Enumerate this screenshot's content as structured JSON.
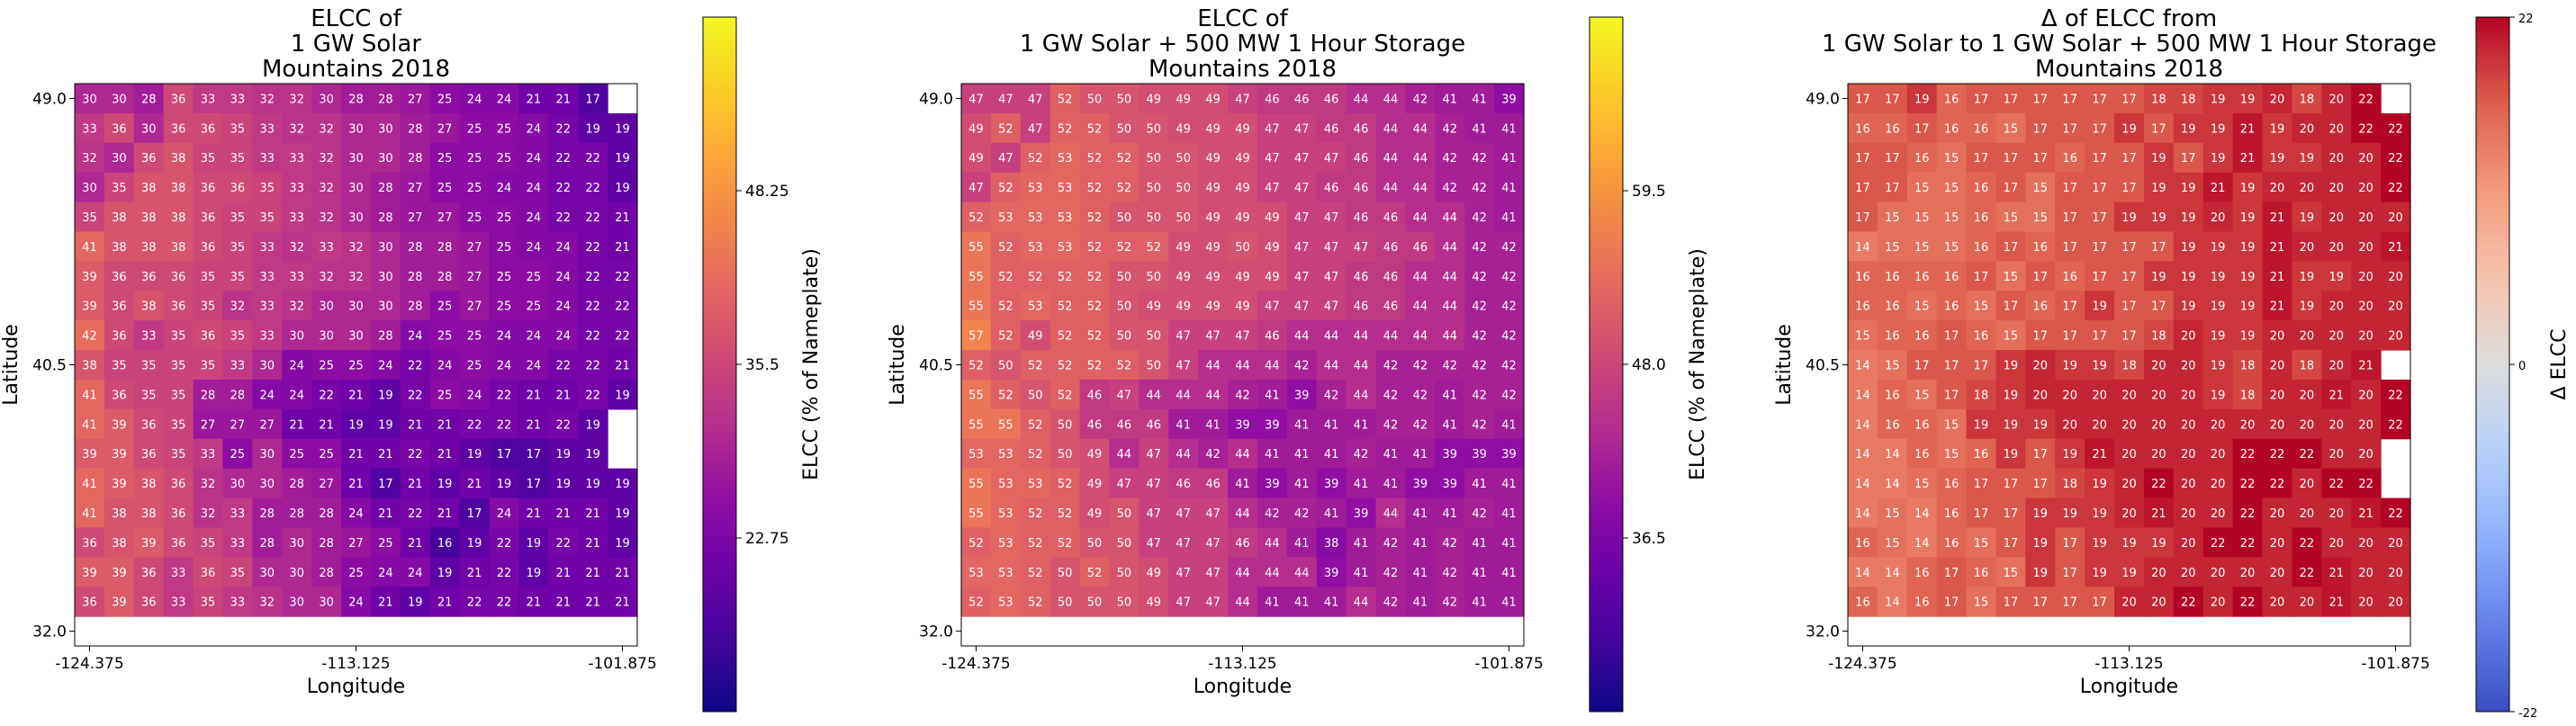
{
  "chart_data": [
    {
      "type": "heatmap",
      "title": "ELCC of\n1 GW Solar\nMountains 2018",
      "xlabel": "Longitude",
      "ylabel": "Latitude",
      "xticks": [
        "-124.375",
        "-113.125",
        "-101.875"
      ],
      "yticks": [
        "49.0",
        "40.5",
        "32.0"
      ],
      "colorbar": {
        "label": "ELCC (% of Nameplate)",
        "ticks": [
          "22.75",
          "35.5",
          "48.25"
        ],
        "tick_values": [
          22.75,
          35.5,
          48.25
        ],
        "range": [
          10,
          61
        ],
        "colormap": "plasma"
      },
      "values": [
        [
          30,
          30,
          28,
          36,
          33,
          33,
          32,
          32,
          30,
          28,
          28,
          27,
          25,
          24,
          24,
          21,
          21,
          17
        ],
        [
          33,
          36,
          30,
          36,
          36,
          35,
          33,
          32,
          32,
          30,
          30,
          28,
          27,
          25,
          25,
          24,
          22,
          19,
          19
        ],
        [
          32,
          30,
          36,
          38,
          35,
          35,
          33,
          33,
          32,
          30,
          30,
          28,
          25,
          25,
          25,
          24,
          22,
          22,
          19
        ],
        [
          30,
          35,
          38,
          38,
          36,
          36,
          35,
          33,
          32,
          30,
          28,
          27,
          25,
          25,
          24,
          24,
          22,
          22,
          19
        ],
        [
          35,
          38,
          38,
          38,
          36,
          35,
          35,
          33,
          32,
          30,
          28,
          27,
          27,
          25,
          25,
          24,
          22,
          22,
          21
        ],
        [
          41,
          38,
          38,
          38,
          36,
          35,
          33,
          32,
          33,
          32,
          30,
          28,
          28,
          27,
          25,
          24,
          24,
          22,
          21
        ],
        [
          39,
          36,
          36,
          36,
          35,
          35,
          33,
          33,
          32,
          32,
          30,
          28,
          28,
          27,
          25,
          25,
          24,
          22,
          22
        ],
        [
          39,
          36,
          38,
          36,
          35,
          32,
          33,
          32,
          30,
          30,
          30,
          28,
          25,
          27,
          25,
          25,
          24,
          22,
          22
        ],
        [
          42,
          36,
          33,
          35,
          36,
          35,
          33,
          30,
          30,
          30,
          28,
          24,
          25,
          25,
          24,
          24,
          24,
          22,
          22
        ],
        [
          38,
          35,
          35,
          35,
          35,
          33,
          30,
          24,
          25,
          25,
          24,
          22,
          24,
          25,
          24,
          24,
          22,
          22,
          21
        ],
        [
          41,
          36,
          35,
          35,
          28,
          28,
          24,
          24,
          22,
          21,
          19,
          22,
          25,
          24,
          22,
          21,
          21,
          22,
          19
        ],
        [
          41,
          39,
          36,
          35,
          27,
          27,
          27,
          21,
          21,
          19,
          19,
          21,
          21,
          22,
          22,
          21,
          22,
          19
        ],
        [
          39,
          39,
          36,
          35,
          33,
          25,
          30,
          25,
          25,
          21,
          21,
          22,
          21,
          19,
          17,
          17,
          19,
          19
        ],
        [
          41,
          39,
          38,
          36,
          32,
          30,
          30,
          28,
          27,
          21,
          17,
          21,
          19,
          21,
          19,
          17,
          19,
          19,
          19
        ],
        [
          41,
          38,
          38,
          36,
          32,
          33,
          28,
          28,
          28,
          24,
          21,
          22,
          21,
          17,
          24,
          21,
          21,
          21,
          19
        ],
        [
          36,
          38,
          39,
          36,
          35,
          33,
          28,
          30,
          28,
          27,
          25,
          21,
          16,
          19,
          22,
          19,
          22,
          21,
          19
        ],
        [
          39,
          39,
          36,
          33,
          36,
          35,
          30,
          30,
          28,
          25,
          24,
          24,
          19,
          21,
          22,
          19,
          21,
          21,
          21
        ],
        [
          36,
          39,
          36,
          33,
          35,
          33,
          32,
          30,
          30,
          24,
          21,
          19,
          21,
          22,
          22,
          21,
          21,
          21,
          21
        ]
      ]
    },
    {
      "type": "heatmap",
      "title": "ELCC of\n1 GW Solar + 500 MW 1 Hour Storage\nMountains 2018",
      "xlabel": "Longitude",
      "ylabel": "Latitude",
      "xticks": [
        "-124.375",
        "-113.125",
        "-101.875"
      ],
      "yticks": [
        "49.0",
        "40.5",
        "32.0"
      ],
      "colorbar": {
        "label": "ELCC (% of Nameplate)",
        "ticks": [
          "36.5",
          "48.0",
          "59.5"
        ],
        "tick_values": [
          36.5,
          48.0,
          59.5
        ],
        "range": [
          25,
          71
        ],
        "colormap": "plasma"
      },
      "values": [
        [
          47,
          47,
          47,
          52,
          50,
          50,
          49,
          49,
          49,
          47,
          46,
          46,
          46,
          44,
          44,
          42,
          41,
          41,
          39
        ],
        [
          49,
          52,
          47,
          52,
          52,
          50,
          50,
          49,
          49,
          49,
          47,
          47,
          46,
          46,
          44,
          44,
          42,
          41,
          41
        ],
        [
          49,
          47,
          52,
          53,
          52,
          52,
          50,
          50,
          49,
          49,
          47,
          47,
          47,
          46,
          44,
          44,
          42,
          42,
          41
        ],
        [
          47,
          52,
          53,
          53,
          52,
          52,
          50,
          50,
          49,
          49,
          47,
          47,
          46,
          46,
          44,
          44,
          42,
          42,
          41
        ],
        [
          52,
          53,
          53,
          53,
          52,
          50,
          50,
          50,
          49,
          49,
          49,
          47,
          47,
          46,
          46,
          44,
          44,
          42,
          41
        ],
        [
          55,
          52,
          53,
          53,
          52,
          52,
          52,
          49,
          49,
          50,
          49,
          47,
          47,
          47,
          46,
          46,
          44,
          42,
          42
        ],
        [
          55,
          52,
          52,
          52,
          52,
          50,
          50,
          49,
          49,
          49,
          49,
          47,
          47,
          46,
          46,
          44,
          44,
          42,
          42
        ],
        [
          55,
          52,
          53,
          52,
          52,
          50,
          49,
          49,
          49,
          49,
          47,
          47,
          47,
          46,
          46,
          44,
          44,
          42,
          42
        ],
        [
          57,
          52,
          49,
          52,
          52,
          50,
          50,
          47,
          47,
          47,
          46,
          44,
          44,
          44,
          44,
          44,
          44,
          42,
          42
        ],
        [
          52,
          50,
          52,
          52,
          52,
          52,
          50,
          47,
          44,
          44,
          44,
          42,
          44,
          44,
          42,
          42,
          42,
          42,
          42
        ],
        [
          55,
          52,
          50,
          52,
          46,
          47,
          44,
          44,
          44,
          42,
          41,
          39,
          42,
          44,
          42,
          42,
          41,
          42,
          42,
          41
        ],
        [
          55,
          55,
          52,
          50,
          46,
          46,
          46,
          41,
          41,
          39,
          39,
          41,
          41,
          41,
          42,
          42,
          41,
          42,
          41
        ],
        [
          53,
          53,
          52,
          50,
          49,
          44,
          47,
          44,
          42,
          44,
          41,
          41,
          41,
          42,
          41,
          41,
          39,
          39,
          39
        ],
        [
          55,
          53,
          53,
          52,
          49,
          47,
          47,
          46,
          46,
          41,
          39,
          41,
          39,
          41,
          41,
          39,
          39,
          41,
          41
        ],
        [
          55,
          53,
          52,
          52,
          49,
          50,
          47,
          47,
          47,
          44,
          42,
          42,
          41,
          39,
          44,
          41,
          41,
          42,
          41
        ],
        [
          52,
          53,
          52,
          52,
          50,
          50,
          47,
          47,
          47,
          46,
          44,
          41,
          38,
          41,
          42,
          41,
          42,
          41,
          41
        ],
        [
          53,
          53,
          52,
          50,
          52,
          50,
          49,
          47,
          47,
          44,
          44,
          44,
          39,
          41,
          42,
          41,
          42,
          41,
          41
        ],
        [
          52,
          53,
          52,
          50,
          50,
          50,
          49,
          47,
          47,
          44,
          41,
          41,
          41,
          44,
          42,
          41,
          42,
          41,
          41
        ]
      ]
    },
    {
      "type": "heatmap",
      "title": "Δ of ELCC from\n1 GW Solar to 1 GW Solar + 500 MW 1 Hour Storage\nMountains 2018",
      "xlabel": "Longitude",
      "ylabel": "Latitude",
      "xticks": [
        "-124.375",
        "-113.125",
        "-101.875"
      ],
      "yticks": [
        "49.0",
        "40.5",
        "32.0"
      ],
      "colorbar": {
        "label": "Δ ELCC",
        "ticks": [
          "-22",
          "0",
          "22"
        ],
        "tick_values": [
          -22,
          0,
          22
        ],
        "range": [
          -22,
          22
        ],
        "colormap": "coolwarm"
      },
      "values": [
        [
          17,
          17,
          19,
          16,
          17,
          17,
          17,
          17,
          17,
          17,
          18,
          18,
          19,
          19,
          20,
          18,
          20,
          22
        ],
        [
          16,
          16,
          17,
          16,
          16,
          15,
          17,
          17,
          17,
          19,
          17,
          19,
          19,
          21,
          19,
          20,
          20,
          22,
          22
        ],
        [
          17,
          17,
          16,
          15,
          17,
          17,
          17,
          16,
          17,
          17,
          19,
          17,
          19,
          21,
          19,
          19,
          20,
          20,
          22
        ],
        [
          17,
          17,
          15,
          15,
          16,
          17,
          15,
          17,
          17,
          17,
          19,
          19,
          21,
          19,
          20,
          20,
          20,
          20,
          22
        ],
        [
          17,
          15,
          15,
          15,
          16,
          15,
          15,
          17,
          17,
          19,
          19,
          19,
          20,
          19,
          21,
          19,
          20,
          20,
          20
        ],
        [
          14,
          15,
          15,
          15,
          16,
          17,
          16,
          17,
          17,
          17,
          17,
          19,
          19,
          19,
          21,
          20,
          20,
          20,
          21
        ],
        [
          16,
          16,
          16,
          16,
          17,
          15,
          17,
          16,
          17,
          17,
          19,
          19,
          19,
          19,
          21,
          19,
          19,
          20,
          20
        ],
        [
          16,
          16,
          15,
          16,
          15,
          17,
          16,
          17,
          19,
          17,
          17,
          19,
          19,
          19,
          21,
          19,
          20,
          20,
          20
        ],
        [
          15,
          16,
          16,
          17,
          16,
          15,
          17,
          17,
          17,
          17,
          18,
          20,
          19,
          19,
          20,
          20,
          20,
          20,
          20
        ],
        [
          14,
          15,
          17,
          17,
          17,
          19,
          20,
          19,
          19,
          18,
          20,
          20,
          19,
          18,
          20,
          18,
          20,
          21
        ],
        [
          14,
          16,
          15,
          17,
          18,
          19,
          20,
          20,
          20,
          20,
          20,
          20,
          19,
          18,
          20,
          20,
          21,
          20,
          22
        ],
        [
          14,
          16,
          16,
          15,
          19,
          19,
          19,
          20,
          20,
          20,
          20,
          20,
          20,
          20,
          20,
          20,
          20,
          20,
          22
        ],
        [
          14,
          14,
          16,
          15,
          16,
          19,
          17,
          19,
          21,
          20,
          20,
          20,
          20,
          22,
          22,
          22,
          20,
          20
        ],
        [
          14,
          14,
          15,
          16,
          17,
          17,
          17,
          18,
          19,
          20,
          22,
          20,
          20,
          22,
          22,
          20,
          22,
          22
        ],
        [
          14,
          15,
          14,
          16,
          17,
          17,
          19,
          19,
          19,
          20,
          21,
          20,
          20,
          22,
          20,
          20,
          20,
          21,
          22
        ],
        [
          16,
          15,
          14,
          16,
          15,
          17,
          19,
          17,
          19,
          19,
          19,
          20,
          22,
          22,
          20,
          22,
          20,
          20,
          20
        ],
        [
          14,
          14,
          16,
          17,
          16,
          15,
          19,
          17,
          19,
          19,
          20,
          20,
          20,
          20,
          20,
          22,
          21,
          20,
          20
        ],
        [
          16,
          14,
          16,
          17,
          15,
          17,
          17,
          17,
          17,
          20,
          20,
          22,
          20,
          22,
          20,
          20,
          21,
          20,
          20
        ]
      ]
    }
  ]
}
